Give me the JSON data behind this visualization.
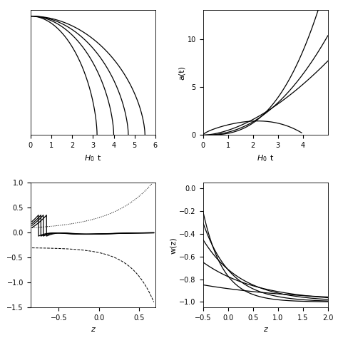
{
  "fig_width": 4.74,
  "fig_height": 4.74,
  "dpi": 100,
  "background": "#ffffff",
  "tl_xlim": [
    0,
    6
  ],
  "tl_ylim": [
    0,
    1.05
  ],
  "tl_xticks": [
    0,
    1,
    2,
    3,
    4,
    5,
    6
  ],
  "tl_t_ends": [
    3.2,
    4.0,
    4.7,
    5.5
  ],
  "tr_xlim": [
    0,
    5
  ],
  "tr_ylim": [
    0,
    13
  ],
  "tr_yticks": [
    0,
    5,
    10
  ],
  "tr_xticks": [
    0,
    1,
    2,
    3,
    4
  ],
  "bl_xlim": [
    -0.85,
    0.7
  ],
  "bl_ylim": [
    -1.5,
    1.0
  ],
  "bl_xticks": [
    -0.5,
    0.0,
    0.5
  ],
  "br_xlim": [
    -0.5,
    2.0
  ],
  "br_ylim": [
    -1.05,
    0.05
  ],
  "br_yticks": [
    0.0,
    -0.2,
    -0.4,
    -0.6,
    -0.8,
    -1.0
  ],
  "br_xticks": [
    -0.5,
    0.0,
    0.5,
    1.0,
    1.5,
    2.0
  ],
  "line_color": "#000000",
  "line_width": 0.9,
  "font_size": 8
}
